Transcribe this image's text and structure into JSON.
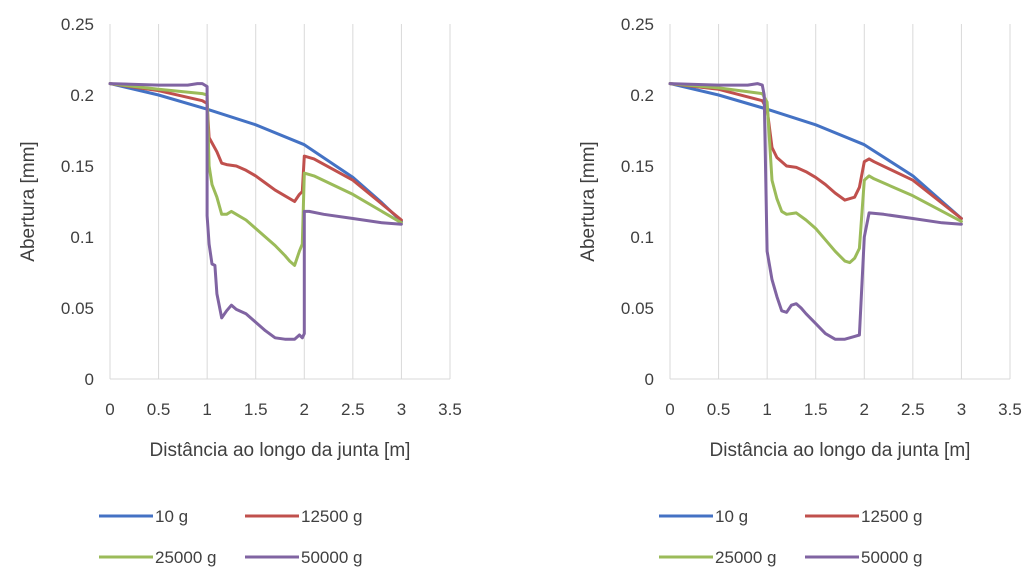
{
  "chart_data": [
    {
      "type": "line",
      "xlabel": "Distância ao longo da junta [m]",
      "ylabel": "Abertura [mm]",
      "xlim": [
        0,
        3.5
      ],
      "ylim": [
        0,
        0.25
      ],
      "xticks": [
        "0",
        "0.5",
        "1",
        "1.5",
        "2",
        "2.5",
        "3",
        "3.5"
      ],
      "yticks": [
        "0",
        "0.05",
        "0.1",
        "0.15",
        "0.2",
        "0.25"
      ],
      "grid": "vertical",
      "legend_position": "bottom",
      "series": [
        {
          "name": "10 g",
          "color": "#4472C4",
          "x": [
            0,
            0.5,
            1.0,
            1.5,
            2.0,
            2.5,
            2.8,
            3.0
          ],
          "y": [
            0.208,
            0.2,
            0.19,
            0.179,
            0.165,
            0.142,
            0.124,
            0.111
          ]
        },
        {
          "name": "12500 g",
          "color": "#C0504D",
          "x": [
            0,
            0.5,
            0.95,
            1.0,
            1.02,
            1.1,
            1.15,
            1.2,
            1.3,
            1.4,
            1.5,
            1.6,
            1.7,
            1.8,
            1.9,
            1.95,
            1.98,
            2.0,
            2.1,
            2.5,
            3.0
          ],
          "y": [
            0.208,
            0.203,
            0.196,
            0.194,
            0.17,
            0.16,
            0.152,
            0.151,
            0.15,
            0.147,
            0.143,
            0.138,
            0.133,
            0.129,
            0.125,
            0.13,
            0.132,
            0.157,
            0.155,
            0.14,
            0.112
          ]
        },
        {
          "name": "25000 g",
          "color": "#9BBB59",
          "x": [
            0,
            0.5,
            0.95,
            1.0,
            1.02,
            1.05,
            1.1,
            1.15,
            1.2,
            1.25,
            1.3,
            1.4,
            1.5,
            1.6,
            1.7,
            1.8,
            1.85,
            1.9,
            1.95,
            1.98,
            2.0,
            2.1,
            2.5,
            3.0
          ],
          "y": [
            0.208,
            0.204,
            0.201,
            0.2,
            0.15,
            0.137,
            0.128,
            0.116,
            0.116,
            0.118,
            0.116,
            0.112,
            0.106,
            0.1,
            0.094,
            0.087,
            0.083,
            0.08,
            0.09,
            0.095,
            0.145,
            0.143,
            0.13,
            0.11
          ]
        },
        {
          "name": "50000 g",
          "color": "#8064A2",
          "x": [
            0,
            0.5,
            0.8,
            0.9,
            0.95,
            1.0,
            1.0,
            1.02,
            1.05,
            1.08,
            1.1,
            1.15,
            1.2,
            1.25,
            1.3,
            1.4,
            1.5,
            1.6,
            1.7,
            1.8,
            1.9,
            1.95,
            1.98,
            2.0,
            2.0,
            2.05,
            2.2,
            2.5,
            2.8,
            3.0
          ],
          "y": [
            0.208,
            0.207,
            0.207,
            0.208,
            0.208,
            0.206,
            0.115,
            0.095,
            0.081,
            0.08,
            0.06,
            0.043,
            0.048,
            0.052,
            0.049,
            0.046,
            0.04,
            0.034,
            0.029,
            0.028,
            0.028,
            0.031,
            0.029,
            0.032,
            0.118,
            0.118,
            0.116,
            0.113,
            0.11,
            0.109
          ]
        }
      ]
    },
    {
      "type": "line",
      "xlabel": "Distância ao longo da junta [m]",
      "ylabel": "Abertura [mm]",
      "xlim": [
        0,
        3.5
      ],
      "ylim": [
        0,
        0.25
      ],
      "xticks": [
        "0",
        "0.5",
        "1",
        "1.5",
        "2",
        "2.5",
        "3",
        "3.5"
      ],
      "yticks": [
        "0",
        "0.05",
        "0.1",
        "0.15",
        "0.2",
        "0.25"
      ],
      "grid": "vertical",
      "legend_position": "bottom",
      "series": [
        {
          "name": "10 g",
          "color": "#4472C4",
          "x": [
            0,
            0.5,
            1.0,
            1.5,
            2.0,
            2.5,
            2.8,
            3.0
          ],
          "y": [
            0.208,
            0.2,
            0.19,
            0.179,
            0.165,
            0.143,
            0.125,
            0.113
          ]
        },
        {
          "name": "12500 g",
          "color": "#C0504D",
          "x": [
            0,
            0.5,
            0.95,
            1.0,
            1.05,
            1.1,
            1.2,
            1.3,
            1.4,
            1.5,
            1.6,
            1.7,
            1.8,
            1.9,
            1.95,
            2.0,
            2.05,
            2.1,
            2.5,
            3.0
          ],
          "y": [
            0.208,
            0.204,
            0.196,
            0.19,
            0.163,
            0.156,
            0.15,
            0.149,
            0.146,
            0.142,
            0.137,
            0.131,
            0.126,
            0.128,
            0.135,
            0.153,
            0.155,
            0.153,
            0.14,
            0.113
          ]
        },
        {
          "name": "25000 g",
          "color": "#9BBB59",
          "x": [
            0,
            0.5,
            0.95,
            1.0,
            1.05,
            1.1,
            1.15,
            1.2,
            1.3,
            1.4,
            1.5,
            1.6,
            1.7,
            1.8,
            1.85,
            1.9,
            1.95,
            2.0,
            2.05,
            2.1,
            2.5,
            3.0
          ],
          "y": [
            0.208,
            0.205,
            0.201,
            0.195,
            0.14,
            0.127,
            0.118,
            0.116,
            0.117,
            0.112,
            0.106,
            0.098,
            0.09,
            0.083,
            0.082,
            0.085,
            0.092,
            0.14,
            0.143,
            0.141,
            0.129,
            0.111
          ]
        },
        {
          "name": "50000 g",
          "color": "#8064A2",
          "x": [
            0,
            0.5,
            0.8,
            0.9,
            0.95,
            0.97,
            1.0,
            1.05,
            1.1,
            1.15,
            1.2,
            1.25,
            1.3,
            1.35,
            1.4,
            1.5,
            1.6,
            1.7,
            1.8,
            1.9,
            1.95,
            2.0,
            2.05,
            2.2,
            2.5,
            2.8,
            3.0
          ],
          "y": [
            0.208,
            0.207,
            0.207,
            0.208,
            0.207,
            0.2,
            0.09,
            0.07,
            0.058,
            0.048,
            0.047,
            0.052,
            0.053,
            0.05,
            0.046,
            0.039,
            0.032,
            0.028,
            0.028,
            0.03,
            0.031,
            0.1,
            0.117,
            0.116,
            0.113,
            0.11,
            0.109
          ]
        }
      ]
    }
  ]
}
